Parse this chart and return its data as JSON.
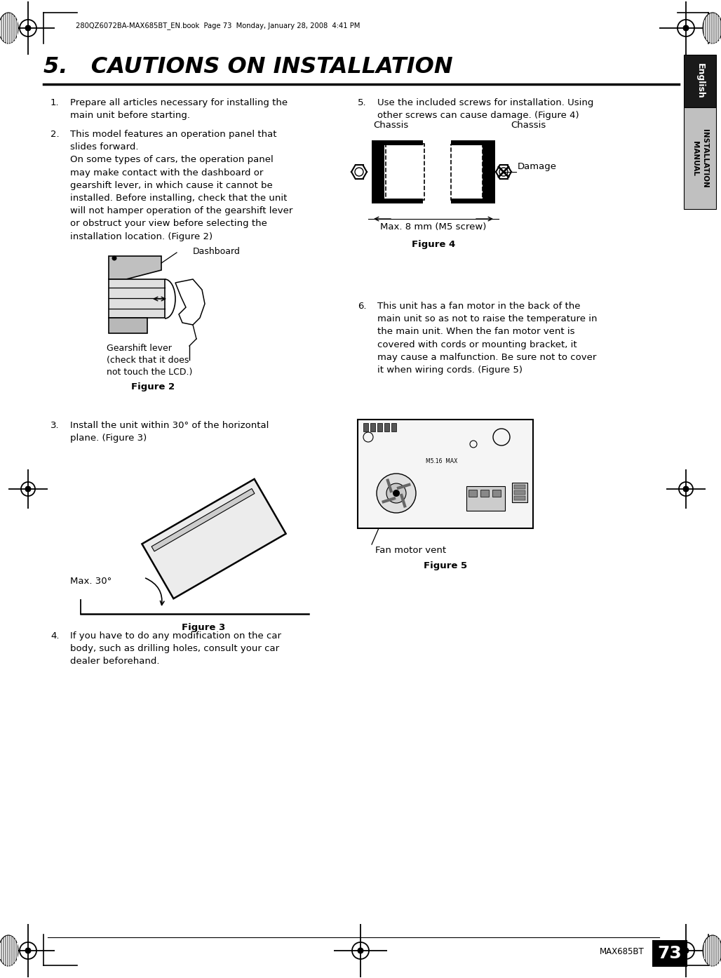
{
  "page_number": "73",
  "product_code": "MAX685BT",
  "header_text": "280QZ6072BA-MAX685BT_EN.book  Page 73  Monday, January 28, 2008  4:41 PM",
  "section_title": "5.   CAUTIONS ON INSTALLATION",
  "right_tab_english": "English",
  "right_tab_install": "INSTALLATION\nMANUAL",
  "item1_num": "1.",
  "item1_text": "Prepare all articles necessary for installing the\nmain unit before starting.",
  "item2_num": "2.",
  "item2_text": "This model features an operation panel that\nslides forward.\nOn some types of cars, the operation panel\nmay make contact with the dashboard or\ngearshift lever, in which cause it cannot be\ninstalled. Before installing, check that the unit\nwill not hamper operation of the gearshift lever\nor obstruct your view before selecting the\ninstallation location. (Figure 2)",
  "item3_num": "3.",
  "item3_text": "Install the unit within 30° of the horizontal\nplane. (Figure 3)",
  "item4_num": "4.",
  "item4_text": "If you have to do any modification on the car\nbody, such as drilling holes, consult your car\ndealer beforehand.",
  "item5_num": "5.",
  "item5_text": "Use the included screws for installation. Using\nother screws can cause damage. (Figure 4)",
  "item6_num": "6.",
  "item6_text": "This unit has a fan motor in the back of the\nmain unit so as not to raise the temperature in\nthe main unit. When the fan motor vent is\ncovered with cords or mounting bracket, it\nmay cause a malfunction. Be sure not to cover\nit when wiring cords. (Figure 5)",
  "fig2_caption": "Figure 2",
  "fig2_dashboard": "Dashboard",
  "fig2_gearshift": "Gearshift lever\n(check that it does\nnot touch the LCD.)",
  "fig3_caption": "Figure 3",
  "fig3_angle": "Max. 30°",
  "fig4_caption": "Figure 4",
  "fig4_chassis_l": "Chassis",
  "fig4_chassis_r": "Chassis",
  "fig4_damage": "Damage",
  "fig4_max": "Max. 8 mm (M5 screw)",
  "fig5_caption": "Figure 5",
  "fig5_fan": "Fan motor vent",
  "bg": "#ffffff",
  "black": "#000000",
  "gray_light": "#d8d8d8",
  "gray_dark": "#1a1a1a",
  "tab_black": "#1a1a1a",
  "tab_gray": "#c0c0c0"
}
